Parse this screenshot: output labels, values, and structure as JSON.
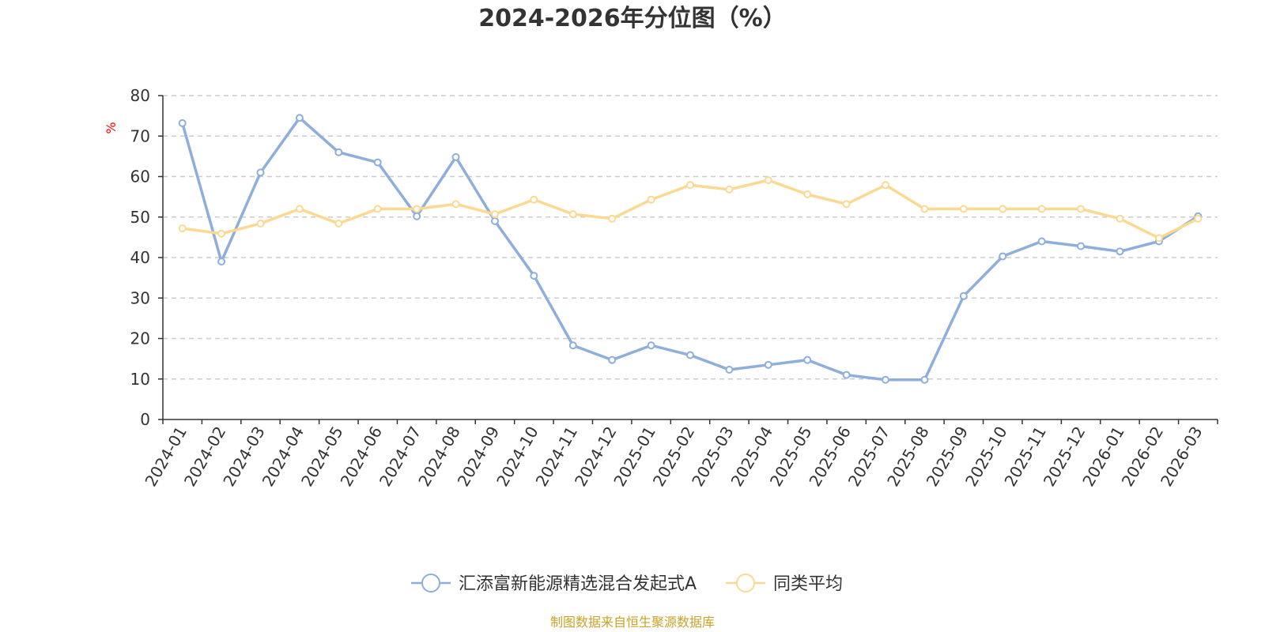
{
  "chart_data": {
    "type": "line",
    "title": "2024-2026年分位图（%）",
    "ylabel": "%",
    "ylim": [
      0,
      80
    ],
    "yticks": [
      0,
      10,
      20,
      30,
      40,
      50,
      60,
      70,
      80
    ],
    "grid": true,
    "legend_position": "bottom",
    "categories": [
      "2024-01",
      "2024-02",
      "2024-03",
      "2024-04",
      "2024-05",
      "2024-06",
      "2024-07",
      "2024-08",
      "2024-09",
      "2024-10",
      "2024-11",
      "2024-12",
      "2025-01",
      "2025-02",
      "2025-03",
      "2025-04",
      "2025-05",
      "2025-06",
      "2025-07",
      "2025-08",
      "2025-09",
      "2025-10",
      "2025-11",
      "2025-12",
      "2026-01",
      "2026-02",
      "2026-03"
    ],
    "series": [
      {
        "name": "汇添富新能源精选混合发起式A",
        "color": "#8eaedc",
        "values": [
          73.2,
          39.0,
          61.0,
          74.5,
          66.0,
          63.5,
          50.2,
          64.8,
          49.0,
          35.5,
          18.3,
          14.7,
          18.3,
          15.9,
          12.3,
          13.5,
          14.7,
          11.0,
          9.8,
          9.8,
          30.5,
          40.3,
          44.0,
          42.8,
          41.5,
          44.0,
          50.2
        ]
      },
      {
        "name": "同类平均",
        "color": "#fbd993",
        "values": [
          47.2,
          45.9,
          48.4,
          52.0,
          48.4,
          52.0,
          52.0,
          53.2,
          50.7,
          54.3,
          50.7,
          49.6,
          54.3,
          57.9,
          56.8,
          59.1,
          55.6,
          53.2,
          57.9,
          52.0,
          52.0,
          52.0,
          52.0,
          52.0,
          49.6,
          44.8,
          49.6
        ]
      }
    ],
    "source_note": "制图数据来自恒生聚源数据库"
  }
}
